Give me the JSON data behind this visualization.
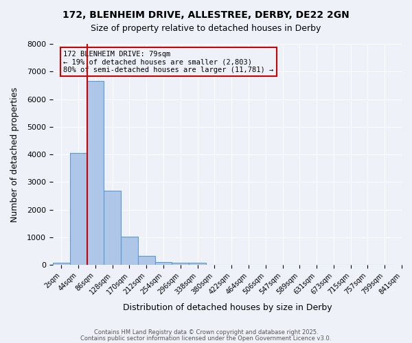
{
  "title1": "172, BLENHEIM DRIVE, ALLESTREE, DERBY, DE22 2GN",
  "title2": "Size of property relative to detached houses in Derby",
  "xlabel": "Distribution of detached houses by size in Derby",
  "ylabel": "Number of detached properties",
  "bar_values": [
    70,
    4050,
    6650,
    2680,
    1030,
    320,
    115,
    75,
    75,
    0,
    0,
    0,
    0,
    0,
    0,
    0,
    0,
    0,
    0,
    0
  ],
  "bin_labels": [
    "2sqm",
    "44sqm",
    "86sqm",
    "128sqm",
    "170sqm",
    "212sqm",
    "254sqm",
    "296sqm",
    "338sqm",
    "380sqm",
    "422sqm",
    "464sqm",
    "506sqm",
    "547sqm",
    "589sqm",
    "631sqm",
    "673sqm",
    "715sqm",
    "757sqm",
    "799sqm"
  ],
  "bar_color": "#aec6e8",
  "bar_edge_color": "#5b9bd5",
  "vline_color": "#cc0000",
  "annotation_text": "172 BLENHEIM DRIVE: 79sqm\n← 19% of detached houses are smaller (2,803)\n80% of semi-detached houses are larger (11,781) →",
  "annotation_box_color": "#cc0000",
  "ylim": [
    0,
    8000
  ],
  "yticks": [
    0,
    1000,
    2000,
    3000,
    4000,
    5000,
    6000,
    7000,
    8000
  ],
  "bg_color": "#eef2f8",
  "grid_color": "#ffffff",
  "footer1": "Contains HM Land Registry data © Crown copyright and database right 2025.",
  "footer2": "Contains public sector information licensed under the Open Government Licence v3.0.",
  "vline_position": 1.5,
  "extra_tick_label": "841sqm"
}
